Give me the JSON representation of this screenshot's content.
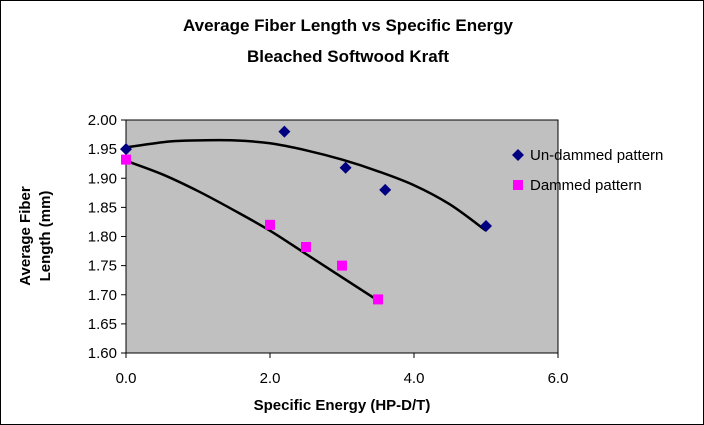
{
  "chart_data": {
    "type": "scatter",
    "title": "Average Fiber Length vs Specific Energy",
    "subtitle": "Bleached Softwood Kraft",
    "xlabel": "Specific Energy (HP-D/T)",
    "ylabel": [
      "Average Fiber",
      "Length (mm)"
    ],
    "xlim": [
      0,
      6
    ],
    "ylim": [
      1.6,
      2.0
    ],
    "x_ticks": [
      "0.0",
      "2.0",
      "4.0",
      "6.0"
    ],
    "y_ticks": [
      "1.60",
      "1.65",
      "1.70",
      "1.75",
      "1.80",
      "1.85",
      "1.90",
      "1.95",
      "2.00"
    ],
    "grid": false,
    "plot_background": "#c0c0c0",
    "legend_position": "right",
    "series": [
      {
        "name": "Un-dammed pattern",
        "marker": "diamond",
        "color": "#000080",
        "x": [
          0.0,
          2.2,
          3.05,
          3.6,
          5.0
        ],
        "y": [
          1.95,
          1.98,
          1.918,
          1.88,
          1.818
        ],
        "trend_x": [
          0.0,
          0.6,
          1.0,
          1.5,
          2.0,
          2.5,
          3.0,
          3.5,
          4.0,
          4.5,
          5.0
        ],
        "trend_y": [
          1.953,
          1.963,
          1.965,
          1.965,
          1.96,
          1.948,
          1.932,
          1.912,
          1.888,
          1.855,
          1.81
        ]
      },
      {
        "name": "Dammed pattern",
        "marker": "square",
        "color": "#ff00ff",
        "x": [
          0.0,
          2.0,
          2.5,
          3.0,
          3.5
        ],
        "y": [
          1.932,
          1.82,
          1.782,
          1.75,
          1.692
        ],
        "trend_x": [
          0.0,
          0.5,
          1.0,
          1.5,
          2.0,
          2.5,
          3.0,
          3.5
        ],
        "trend_y": [
          1.93,
          1.907,
          1.878,
          1.845,
          1.81,
          1.77,
          1.73,
          1.69
        ]
      }
    ]
  }
}
